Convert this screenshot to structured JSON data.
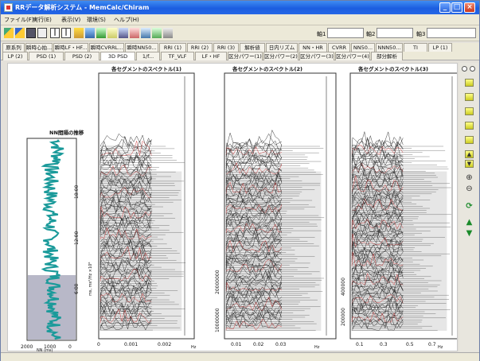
{
  "window": {
    "title": "RRデータ解析システム - MemCalc/Chiram"
  },
  "menu": [
    "ファイル(F)",
    "実行(E)",
    "表示(V)",
    "環境(S)",
    "ヘルプ(H)"
  ],
  "axis_fields": [
    "軸1",
    "軸2",
    "軸3"
  ],
  "tabs_row1": [
    "原系列",
    "瞬時心拍...",
    "瞬時LF・HF...",
    "瞬時CVRRL...",
    "瞬時NN50...",
    "RRI (1)",
    "RRI (2)",
    "RRI (3)",
    "解析値",
    "日内リズム",
    "NN・HR",
    "CVRR",
    "NN50...",
    "NNN50...",
    "TI",
    "LP (1)"
  ],
  "tabs_row2": [
    "LP (2)",
    "PSD (1)",
    "PSD (2)",
    "3D PSD",
    "1/f...",
    "TF_VLF",
    "LF・HF",
    "区分パワー(1)",
    "区分パワー(2)",
    "区分パワー(3)",
    "区分パワー(4)",
    "部分解析"
  ],
  "active_tab": "3D PSD",
  "trend_panel": {
    "title": "NN間隔の推移",
    "x_ticks": [
      "2000",
      "1000",
      "0"
    ],
    "x_unit": "NN (ms)"
  },
  "time_ticks": [
    "18:00",
    "12:00",
    "6:00"
  ],
  "panels": [
    {
      "title": "各セグメントのスペクトル(1)",
      "x_ticks": [
        "0",
        "0.001",
        "0.002"
      ],
      "x_unit": "Hz",
      "y_unit": "ms, ms²/Hz ×10⁶"
    },
    {
      "title": "各セグメントのスペクトル(2)",
      "x_ticks": [
        "0.01",
        "0.02",
        "0.03"
      ],
      "x_unit": "Hz",
      "y_ticks": [
        "10000000",
        "20000000"
      ]
    },
    {
      "title": "各セグメントのスペクトル(3)",
      "x_ticks": [
        "0.1",
        "0.3",
        "0.5",
        "0.7"
      ],
      "x_unit": "Hz",
      "y_ticks": [
        "200000",
        "400000"
      ]
    }
  ],
  "colors": {
    "trend": "#1a9a9a",
    "trend_band": "#b8b8c8",
    "trace": "#222222",
    "highlight": "#c83030",
    "fill": "#e6e6e6"
  },
  "sidebar_icons": [
    "radio-icon",
    "grid-icon",
    "grid-icon",
    "grid-icon",
    "grid-icon",
    "grid-icon",
    "up-icon",
    "down-icon",
    "zoom-in-icon",
    "zoom-out-icon",
    "rotate-icon",
    "triangle-up-icon",
    "triangle-down-icon"
  ]
}
